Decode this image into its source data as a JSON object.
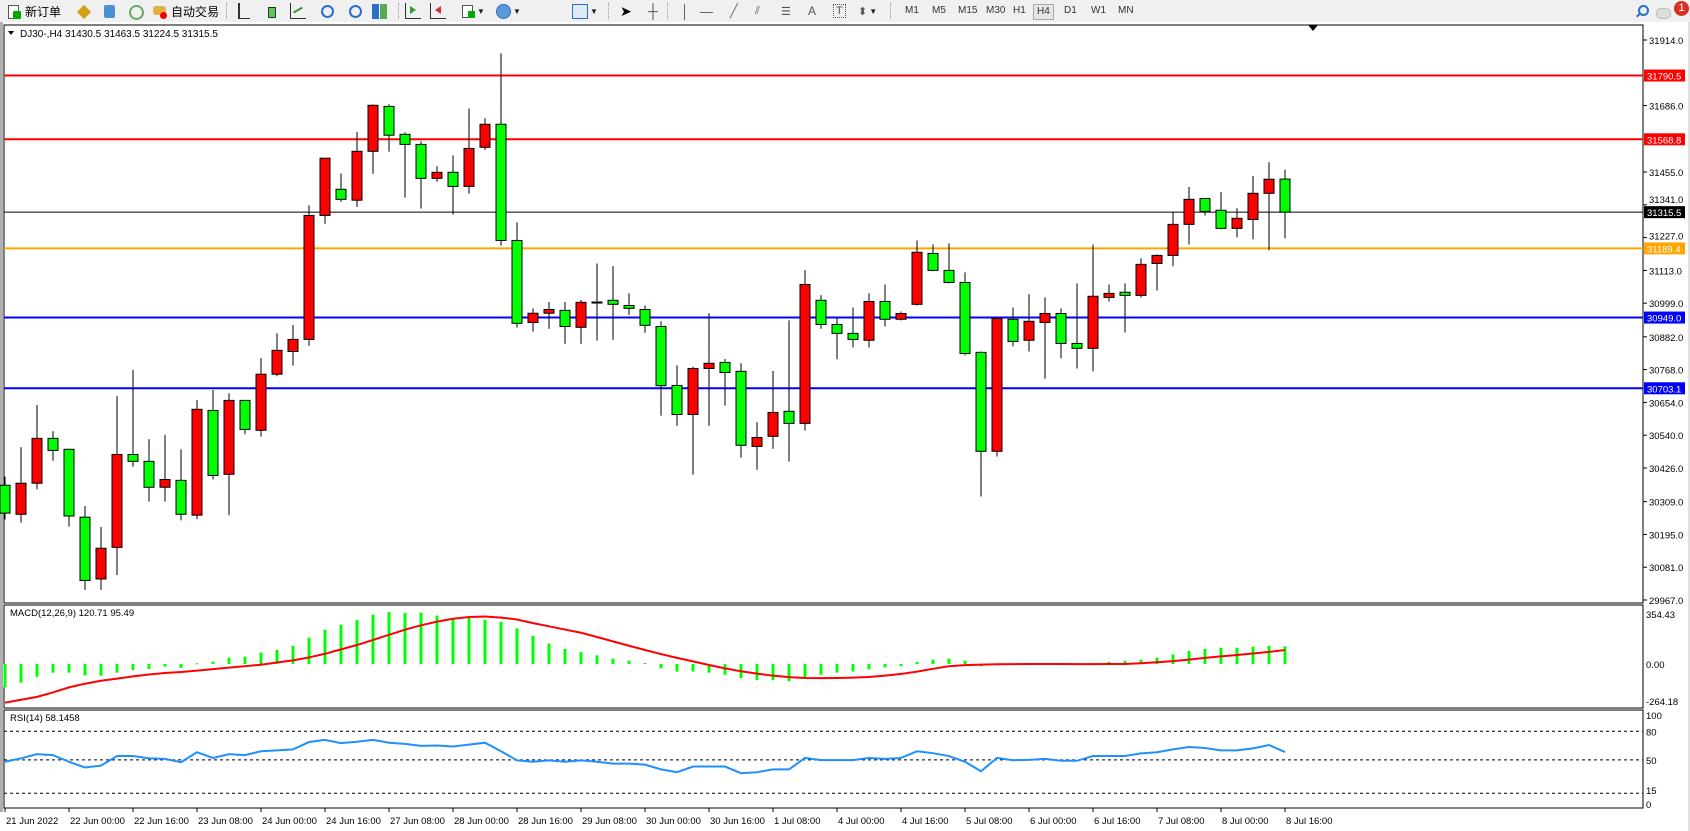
{
  "toolbar": {
    "new_order_label": "新订单",
    "auto_trading_label": "自动交易",
    "timeframes": [
      "M1",
      "M5",
      "M15",
      "M30",
      "H1",
      "H4",
      "D1",
      "W1",
      "MN"
    ],
    "selected_timeframe": "H4",
    "notification_count": "1",
    "icons": [
      "new-order-icon",
      "metaeditor-icon",
      "data-window-icon",
      "signals-icon",
      "auto-trading-icon",
      "bar-chart-icon",
      "candlestick-icon",
      "line-chart-icon",
      "zoom-in-icon",
      "zoom-out-icon",
      "tile-windows-icon",
      "autoscroll-icon",
      "chart-shift-icon",
      "indicators-icon",
      "periods-icon",
      "templates-icon",
      "cursor-icon",
      "crosshair-icon",
      "vertical-line-icon",
      "horizontal-line-icon",
      "trendline-icon",
      "equidistant-channel-icon",
      "fibonacci-icon",
      "text-icon",
      "text-label-icon",
      "arrows-icon",
      "search-icon",
      "notification-icon"
    ]
  },
  "chart": {
    "header": "DJ30-,H4  31430.5 31463.5 31224.5 31315.5",
    "colors": {
      "up": "#ff0000",
      "down": "#00ff00",
      "macd_hist": "#00ff00",
      "macd_signal": "#ff0000",
      "rsi": "#1e90ff"
    }
  },
  "chart_data": [
    {
      "type": "candlestick",
      "symbol": "DJ30-",
      "timeframe": "H4",
      "ylim": [
        29967,
        31914
      ],
      "y_ticks": [
        "31914.0",
        "31686.0",
        "31455.0",
        "31341.0",
        "31227.0",
        "31113.0",
        "30999.0",
        "30882.0",
        "30768.0",
        "30654.0",
        "30540.0",
        "30426.0",
        "30309.0",
        "30195.0",
        "30081.0",
        "29967.0"
      ],
      "x_tick_labels": [
        "21 Jun 2022",
        "22 Jun 00:00",
        "22 Jun 16:00",
        "23 Jun 08:00",
        "24 Jun 00:00",
        "24 Jun 16:00",
        "27 Jun 08:00",
        "28 Jun 00:00",
        "28 Jun 16:00",
        "29 Jun 08:00",
        "30 Jun 00:00",
        "30 Jun 16:00",
        "1 Jul 08:00",
        "4 Jul 00:00",
        "4 Jul 16:00",
        "5 Jul 08:00",
        "6 Jul 00:00",
        "6 Jul 16:00",
        "7 Jul 08:00",
        "8 Jul 00:00",
        "8 Jul 16:00"
      ],
      "x_tick_every_bars": 4,
      "ohlc": [
        [
          30366,
          30396,
          30247,
          30269
        ],
        [
          30265,
          30498,
          30236,
          30373
        ],
        [
          30373,
          30645,
          30352,
          30529
        ],
        [
          30529,
          30554,
          30451,
          30487
        ],
        [
          30491,
          30491,
          30222,
          30259
        ],
        [
          30255,
          30294,
          30002,
          30035
        ],
        [
          30040,
          30221,
          30002,
          30147
        ],
        [
          30150,
          30676,
          30054,
          30473
        ],
        [
          30473,
          30767,
          30430,
          30449
        ],
        [
          30449,
          30526,
          30309,
          30359
        ],
        [
          30359,
          30541,
          30309,
          30386
        ],
        [
          30383,
          30491,
          30244,
          30265
        ],
        [
          30262,
          30662,
          30248,
          30630
        ],
        [
          30626,
          30697,
          30386,
          30400
        ],
        [
          30404,
          30686,
          30262,
          30661
        ],
        [
          30661,
          30661,
          30543,
          30560
        ],
        [
          30557,
          30808,
          30535,
          30752
        ],
        [
          30752,
          30895,
          30745,
          30835
        ],
        [
          30831,
          30923,
          30782,
          30873
        ],
        [
          30873,
          31340,
          30851,
          31304
        ],
        [
          31304,
          31503,
          31275,
          31503
        ],
        [
          31395,
          31450,
          31351,
          31360
        ],
        [
          31357,
          31594,
          31334,
          31527
        ],
        [
          31527,
          31690,
          31449,
          31687
        ],
        [
          31683,
          31690,
          31526,
          31583
        ],
        [
          31586,
          31593,
          31366,
          31551
        ],
        [
          31551,
          31562,
          31328,
          31433
        ],
        [
          31433,
          31475,
          31421,
          31454
        ],
        [
          31454,
          31513,
          31307,
          31405
        ],
        [
          31405,
          31676,
          31380,
          31537
        ],
        [
          31541,
          31642,
          31532,
          31621
        ],
        [
          31621,
          31868,
          31199,
          31217
        ],
        [
          31217,
          31280,
          30914,
          30929
        ],
        [
          30932,
          30981,
          30900,
          30964
        ],
        [
          30964,
          31003,
          30910,
          30977
        ],
        [
          30974,
          31003,
          30858,
          30918
        ],
        [
          30915,
          31010,
          30858,
          31002
        ],
        [
          31003,
          31137,
          30869,
          31001
        ],
        [
          31009,
          31128,
          30872,
          30995
        ],
        [
          30991,
          31034,
          30958,
          30981
        ],
        [
          30977,
          30991,
          30896,
          30922
        ],
        [
          30918,
          30936,
          30608,
          30712
        ],
        [
          30713,
          30783,
          30573,
          30612
        ],
        [
          30612,
          30778,
          30403,
          30772
        ],
        [
          30772,
          30964,
          30573,
          30790
        ],
        [
          30793,
          30805,
          30643,
          30758
        ],
        [
          30762,
          30790,
          30462,
          30505
        ],
        [
          30501,
          30585,
          30420,
          30532
        ],
        [
          30536,
          30763,
          30493,
          30619
        ],
        [
          30623,
          30939,
          30448,
          30581
        ],
        [
          30581,
          31114,
          30556,
          31064
        ],
        [
          31009,
          31027,
          30910,
          30925
        ],
        [
          30925,
          30946,
          30804,
          30894
        ],
        [
          30894,
          30984,
          30845,
          30873
        ],
        [
          30870,
          31033,
          30845,
          31005
        ],
        [
          31005,
          31064,
          30918,
          30943
        ],
        [
          30943,
          30970,
          30939,
          30963
        ],
        [
          30995,
          31217,
          30991,
          31176
        ],
        [
          31172,
          31203,
          31110,
          31113
        ],
        [
          31113,
          31207,
          31068,
          31071
        ],
        [
          31071,
          31106,
          30817,
          30824
        ],
        [
          30828,
          30831,
          30327,
          30484
        ],
        [
          30484,
          30946,
          30466,
          30946
        ],
        [
          30943,
          30984,
          30849,
          30866
        ],
        [
          30870,
          31030,
          30831,
          30936
        ],
        [
          30932,
          31019,
          30736,
          30963
        ],
        [
          30963,
          30981,
          30807,
          30859
        ],
        [
          30859,
          31068,
          30772,
          30842
        ],
        [
          30842,
          31203,
          30762,
          31023
        ],
        [
          31019,
          31064,
          31005,
          31033
        ],
        [
          31037,
          31068,
          30897,
          31026
        ],
        [
          31026,
          31155,
          31019,
          31134
        ],
        [
          31137,
          31169,
          31043,
          31165
        ],
        [
          31165,
          31315,
          31127,
          31273
        ],
        [
          31273,
          31403,
          31203,
          31360
        ],
        [
          31363,
          31363,
          31304,
          31318
        ],
        [
          31322,
          31385,
          31256,
          31259
        ],
        [
          31259,
          31329,
          31228,
          31294
        ],
        [
          31290,
          31441,
          31221,
          31381
        ],
        [
          31381,
          31489,
          31183,
          31430
        ],
        [
          31430.5,
          31463.5,
          31224.5,
          31315.5
        ]
      ],
      "horizontal_lines": [
        {
          "value": "31790.5",
          "color": "#ff0000"
        },
        {
          "value": "31568.8",
          "color": "#ff0000"
        },
        {
          "value": "31315.5",
          "color": "#000000"
        },
        {
          "value": "31189.4",
          "color": "#ffa500"
        },
        {
          "value": "30949.0",
          "color": "#0000ff"
        },
        {
          "value": "30703.1",
          "color": "#0000ff"
        }
      ]
    },
    {
      "type": "bar",
      "label": "MACD(12,26,9) 120.71 95.49",
      "ylim": [
        -264.18,
        354.43
      ],
      "y_ticks": [
        "354.43",
        "0.00",
        "-264.18"
      ],
      "main": [
        -160,
        -128,
        -87,
        -59,
        -59,
        -78,
        -80,
        -59,
        -41,
        -34,
        -18,
        -27,
        5,
        16,
        43,
        50,
        78,
        96,
        123,
        180,
        233,
        269,
        301,
        338,
        356,
        350,
        352,
        332,
        317,
        317,
        303,
        288,
        244,
        192,
        140,
        103,
        81,
        59,
        37,
        22,
        7,
        -30,
        -52,
        -52,
        -59,
        -74,
        -96,
        -111,
        -111,
        -118,
        -89,
        -74,
        -59,
        -52,
        -37,
        -22,
        -15,
        15,
        30,
        37,
        22,
        -15,
        -7,
        -7,
        -7,
        0,
        -7,
        -7,
        7,
        15,
        22,
        30,
        44,
        66,
        89,
        103,
        111,
        111,
        118,
        125,
        120.71
      ],
      "signal": [
        -265,
        -245,
        -225,
        -195,
        -160,
        -135,
        -115,
        -100,
        -85,
        -72,
        -62,
        -55,
        -45,
        -35,
        -25,
        -15,
        -5,
        10,
        25,
        45,
        70,
        100,
        130,
        165,
        200,
        235,
        265,
        290,
        310,
        322,
        325,
        318,
        305,
        280,
        258,
        236,
        214,
        185,
        155,
        125,
        96,
        68,
        42,
        18,
        -7,
        -30,
        -50,
        -66,
        -80,
        -90,
        -96,
        -97,
        -96,
        -93,
        -89,
        -80,
        -68,
        -52,
        -33,
        -15,
        -8,
        -4,
        -2,
        -1,
        0,
        0,
        0,
        -1,
        -1,
        0,
        0,
        5,
        12,
        20,
        30,
        42,
        52,
        62,
        72,
        83,
        95.49
      ]
    },
    {
      "type": "line",
      "label": "RSI(14) 58.1458",
      "ylim": [
        0,
        100
      ],
      "y_ticks": [
        "100",
        "80",
        "50",
        "15",
        "0"
      ],
      "levels": [
        80,
        50,
        15
      ],
      "values": [
        48,
        51.6,
        56,
        55,
        48,
        42,
        44,
        54,
        54,
        51.7,
        51,
        47.5,
        58,
        52,
        56,
        55,
        59,
        60,
        61,
        68.7,
        71,
        67.5,
        69,
        71,
        68,
        66.8,
        64.7,
        65,
        64,
        66,
        68,
        59,
        49.5,
        48,
        49.5,
        48,
        49.5,
        48,
        46,
        46,
        45,
        40,
        37,
        43,
        43,
        43,
        36,
        37,
        40,
        40,
        52,
        49.7,
        49.7,
        49.7,
        52,
        51,
        52,
        59,
        57,
        54,
        48,
        38,
        52,
        49.6,
        50,
        51,
        49,
        49,
        54,
        54,
        54,
        56.8,
        58,
        61,
        63.5,
        62.4,
        60,
        60,
        62,
        65.5,
        58.1458
      ]
    }
  ]
}
